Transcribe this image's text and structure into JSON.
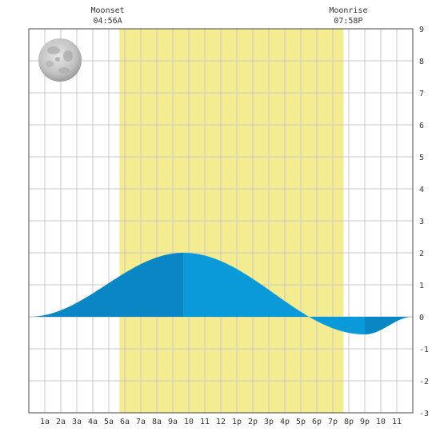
{
  "chart_data": {
    "type": "area",
    "title": "",
    "xlabel": "",
    "ylabel": "",
    "xlim": [
      0,
      24
    ],
    "ylim": [
      -3,
      9
    ],
    "y_ticks": [
      9,
      8,
      7,
      6,
      5,
      4,
      3,
      2,
      1,
      0,
      -1,
      -2,
      -3
    ],
    "x_ticks": [
      {
        "x": 1,
        "label": "1a"
      },
      {
        "x": 2,
        "label": "2a"
      },
      {
        "x": 3,
        "label": "3a"
      },
      {
        "x": 4,
        "label": "4a"
      },
      {
        "x": 5,
        "label": "5a"
      },
      {
        "x": 6,
        "label": "6a"
      },
      {
        "x": 7,
        "label": "7a"
      },
      {
        "x": 8,
        "label": "8a"
      },
      {
        "x": 9,
        "label": "9a"
      },
      {
        "x": 10,
        "label": "10"
      },
      {
        "x": 11,
        "label": "11"
      },
      {
        "x": 12,
        "label": "12"
      },
      {
        "x": 13,
        "label": "1p"
      },
      {
        "x": 14,
        "label": "2p"
      },
      {
        "x": 15,
        "label": "3p"
      },
      {
        "x": 16,
        "label": "4p"
      },
      {
        "x": 17,
        "label": "5p"
      },
      {
        "x": 18,
        "label": "6p"
      },
      {
        "x": 19,
        "label": "7p"
      },
      {
        "x": 20,
        "label": "8p"
      },
      {
        "x": 21,
        "label": "9p"
      },
      {
        "x": 22,
        "label": "10"
      },
      {
        "x": 23,
        "label": "11"
      }
    ],
    "grid": true,
    "daylight_band": {
      "start": 5.67,
      "end": 19.67
    },
    "tide": {
      "high": {
        "time": 9.67,
        "height": 2.0
      },
      "low": {
        "time": 21.0,
        "height": -0.55
      },
      "start_height": 0.0,
      "end_height": 0.0
    },
    "shade_split": [
      9.67,
      21.0
    ],
    "moon_events": [
      {
        "name": "Moonset",
        "time": "04:56A",
        "x": 4.93
      },
      {
        "name": "Moonrise",
        "time": "07:58P",
        "x": 19.97
      }
    ],
    "moon_phase": "full-moon-icon",
    "colors": {
      "daylight": "#f3ec90",
      "tide_rising": "#0a86c4",
      "tide_falling": "#0a99d9",
      "grid": "#c8c8c8",
      "frame": "#444444"
    }
  }
}
